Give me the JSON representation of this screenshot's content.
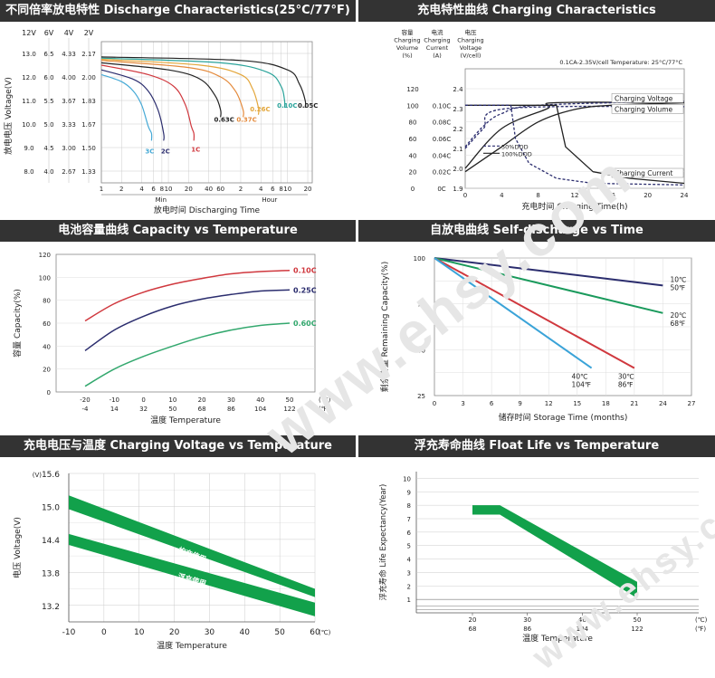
{
  "watermark": "www.ehsy.com",
  "colors": {
    "header_bg": "#333333",
    "green": "#12a14b",
    "red": "#d0383e",
    "navy": "#2b2d6e",
    "mint": "#33a86e"
  },
  "panels": {
    "discharge": {
      "title": "不同倍率放电特性 Discharge Characteristics(25°C/77°F)",
      "voltage_headers": [
        "12V",
        "6V",
        "4V",
        "2V"
      ],
      "voltage_rows": [
        [
          "13.0",
          "6.5",
          "4.33",
          "2.17"
        ],
        [
          "12.0",
          "6.0",
          "4.00",
          "2.00"
        ],
        [
          "11.0",
          "5.5",
          "3.67",
          "1.83"
        ],
        [
          "10.0",
          "5.0",
          "3.33",
          "1.67"
        ],
        [
          "9.0",
          "4.5",
          "3.00",
          "1.50"
        ],
        [
          "8.0",
          "4.0",
          "2.67",
          "1.33"
        ]
      ],
      "ylabel": "放电电压 Voltage(V)",
      "x_ticks": [
        "1",
        "2",
        "4",
        "6",
        "8",
        "10",
        "20",
        "40",
        "60",
        "2",
        "4",
        "6",
        "8",
        "10",
        "20"
      ],
      "min_label": "Min",
      "hour_label": "Hour",
      "xlabel": "放电时间 Discharging Time"
    },
    "charging": {
      "title": "充电特性曲线 Charging Characteristics",
      "col_headers": [
        [
          "容量",
          "Charging",
          "Volume",
          "(%)"
        ],
        [
          "电流",
          "Charging",
          "Current",
          "(A)"
        ],
        [
          "电压",
          "Charging",
          "Voltage",
          "(V/cell)"
        ]
      ],
      "condition": "0.1CA-2.35V/cell  Temperature: 25°C/77°C",
      "volume_ticks": [
        "120",
        "100",
        "80",
        "60",
        "40",
        "20",
        "0"
      ],
      "current_ticks": [
        "0.10C",
        "0.08C",
        "0.06C",
        "0.04C",
        "0.02C",
        "0C"
      ],
      "voltage_ticks": [
        "2.4",
        "2.3",
        "2.2",
        "2.1",
        "2.0",
        "1.9"
      ],
      "x_ticks": [
        "0",
        "4",
        "8",
        "12",
        "16",
        "20",
        "24"
      ],
      "xlabel": "充电时间 Charging Time(h)",
      "legend": [
        "50%DOD",
        "100%DOD"
      ],
      "curve_labels": [
        "Charging Voltage",
        "Charging Volume",
        "Charging Current"
      ]
    },
    "capacity": {
      "title": "电池容量曲线 Capacity vs Temperature",
      "ylabel": "容量 Capacity(%)",
      "xlabel": "温度 Temperature",
      "y_ticks": [
        "120",
        "100",
        "80",
        "60",
        "40",
        "20",
        "0"
      ],
      "x_ticks_c": [
        "-20",
        "-10",
        "0",
        "10",
        "20",
        "30",
        "40",
        "50"
      ],
      "x_ticks_f": [
        "-4",
        "14",
        "32",
        "50",
        "68",
        "86",
        "104",
        "122"
      ],
      "unit_c": "(℃)",
      "unit_f": "(℉)"
    },
    "selfdischarge": {
      "title": "自放电曲线 Self-discharge vs Time",
      "ylabel": "剩余容量 Remaining Capacity(%)",
      "xlabel": "储存时间 Storage Time (months)",
      "y_ticks": [
        "100",
        "75",
        "50",
        "25"
      ],
      "x_ticks": [
        "0",
        "3",
        "6",
        "9",
        "12",
        "15",
        "18",
        "21",
        "24",
        "27"
      ]
    },
    "chargevolt": {
      "title": "充电电压与温度 Charging Voltage vs Temperature",
      "ylabel": "电压 Voltage(V)",
      "yunit": "(V)",
      "xlabel": "温度 Temperature",
      "y_ticks": [
        "15.6",
        "15.0",
        "14.4",
        "13.8",
        "13.2"
      ],
      "x_ticks": [
        "-10",
        "0",
        "10",
        "20",
        "30",
        "40",
        "50",
        "60"
      ],
      "xunit": "(℃)"
    },
    "floatlife": {
      "title": "浮充寿命曲线 Float Life vs Temperature",
      "ylabel": "浮充寿命 Life Expectancy(Year)",
      "xlabel": "温度 Temperature",
      "y_ticks": [
        "10",
        "9",
        "8",
        "7",
        "6",
        "5",
        "4",
        "3",
        "2",
        "1"
      ],
      "x_ticks_c": [
        "20",
        "30",
        "40",
        "50"
      ],
      "x_ticks_f": [
        "68",
        "86",
        "104",
        "122"
      ],
      "unit_c": "(℃)",
      "unit_f": "(℉)"
    }
  },
  "chart_data": [
    {
      "type": "line",
      "title": "不同倍率放电特性 Discharge Characteristics(25°C/77°F)",
      "xlabel": "放电时间 Discharging Time",
      "ylabel": "放电电压 Voltage(V)",
      "x_scale": "log",
      "x_unit": "minutes",
      "ylim": [
        7.5,
        13.5
      ],
      "series": [
        {
          "name": "3C",
          "color": "#45a9d6",
          "points": [
            [
              1,
              12.1
            ],
            [
              2,
              11.8
            ],
            [
              3,
              11.4
            ],
            [
              4,
              10.8
            ],
            [
              5,
              9.9
            ],
            [
              5.6,
              9.6
            ]
          ]
        },
        {
          "name": "2C",
          "color": "#2b2d6e",
          "points": [
            [
              1,
              12.3
            ],
            [
              3,
              11.9
            ],
            [
              5,
              11.4
            ],
            [
              7,
              10.6
            ],
            [
              8.5,
              9.6
            ]
          ]
        },
        {
          "name": "1C",
          "color": "#d0383e",
          "points": [
            [
              1,
              12.5
            ],
            [
              5,
              12.1
            ],
            [
              12,
              11.6
            ],
            [
              18,
              10.8
            ],
            [
              22,
              9.9
            ],
            [
              24,
              9.6
            ]
          ]
        },
        {
          "name": "0.63C",
          "color": "#222222",
          "points": [
            [
              1,
              12.6
            ],
            [
              10,
              12.3
            ],
            [
              30,
              11.9
            ],
            [
              50,
              11.2
            ],
            [
              60,
              10.6
            ]
          ]
        },
        {
          "name": "0.37C",
          "color": "#e48a3c",
          "points": [
            [
              1,
              12.7
            ],
            [
              20,
              12.4
            ],
            [
              60,
              12.0
            ],
            [
              100,
              11.4
            ],
            [
              130,
              10.6
            ]
          ]
        },
        {
          "name": "0.26C",
          "color": "#e3a63a",
          "points": [
            [
              1,
              12.75
            ],
            [
              30,
              12.5
            ],
            [
              120,
              12.1
            ],
            [
              180,
              11.5
            ],
            [
              220,
              10.7
            ]
          ]
        },
        {
          "name": "0.10C",
          "color": "#2aa39a",
          "points": [
            [
              1,
              12.8
            ],
            [
              60,
              12.6
            ],
            [
              300,
              12.2
            ],
            [
              480,
              11.6
            ],
            [
              540,
              11.0
            ]
          ]
        },
        {
          "name": "0.05C",
          "color": "#222222",
          "points": [
            [
              1,
              12.85
            ],
            [
              120,
              12.7
            ],
            [
              600,
              12.3
            ],
            [
              900,
              11.7
            ],
            [
              1100,
              11.0
            ]
          ]
        }
      ]
    },
    {
      "type": "line",
      "title": "充电特性曲线 Charging Characteristics",
      "xlabel": "充电时间 Charging Time(h)",
      "xlim": [
        0,
        24
      ],
      "series": [
        {
          "name": "Charging Voltage (100%DOD)",
          "axis": "voltage",
          "points": [
            [
              0,
              2.0
            ],
            [
              4,
              2.2
            ],
            [
              9,
              2.3
            ],
            [
              10,
              2.33
            ],
            [
              24,
              2.33
            ]
          ]
        },
        {
          "name": "Charging Voltage (50%DOD)",
          "axis": "voltage",
          "points": [
            [
              0,
              2.1
            ],
            [
              2,
              2.2
            ],
            [
              4.5,
              2.3
            ],
            [
              24,
              2.31
            ]
          ]
        },
        {
          "name": "Charging Volume (100%DOD)",
          "axis": "volume",
          "points": [
            [
              0,
              20
            ],
            [
              4,
              50
            ],
            [
              8,
              80
            ],
            [
              12,
              95
            ],
            [
              16,
              100
            ],
            [
              24,
              103
            ]
          ]
        },
        {
          "name": "Charging Volume (50%DOD)",
          "axis": "volume",
          "points": [
            [
              0,
              50
            ],
            [
              2,
              75
            ],
            [
              4,
              90
            ],
            [
              8,
              100
            ],
            [
              24,
              105
            ]
          ]
        },
        {
          "name": "Charging Current (100%DOD)",
          "axis": "current",
          "points": [
            [
              0,
              0.1
            ],
            [
              10,
              0.1
            ],
            [
              11,
              0.05
            ],
            [
              14,
              0.02
            ],
            [
              18,
              0.012
            ],
            [
              24,
              0.006
            ]
          ]
        },
        {
          "name": "Charging Current (50%DOD)",
          "axis": "current",
          "points": [
            [
              0,
              0.1
            ],
            [
              5,
              0.1
            ],
            [
              5.5,
              0.06
            ],
            [
              7,
              0.03
            ],
            [
              10,
              0.012
            ],
            [
              14,
              0.006
            ],
            [
              24,
              0.004
            ]
          ]
        }
      ],
      "volume_range": [
        0,
        120
      ],
      "current_range": [
        0,
        0.12
      ],
      "voltage_range": [
        1.9,
        2.4
      ]
    },
    {
      "type": "line",
      "title": "电池容量曲线 Capacity vs Temperature",
      "xlabel": "温度 Temperature",
      "ylabel": "容量 Capacity(%)",
      "xlim": [
        -20,
        50
      ],
      "ylim": [
        0,
        120
      ],
      "series": [
        {
          "name": "0.10C",
          "color": "#d0383e",
          "x": [
            -20,
            -10,
            0,
            10,
            20,
            30,
            40,
            50
          ],
          "values": [
            62,
            77,
            87,
            94,
            99,
            103,
            105,
            106
          ]
        },
        {
          "name": "0.25C",
          "color": "#2b2d6e",
          "x": [
            -20,
            -10,
            0,
            10,
            20,
            30,
            40,
            50
          ],
          "values": [
            36,
            54,
            66,
            75,
            81,
            85,
            88,
            89
          ]
        },
        {
          "name": "0.60C",
          "color": "#33a86e",
          "x": [
            -20,
            -10,
            0,
            10,
            20,
            30,
            40,
            50
          ],
          "values": [
            5,
            20,
            31,
            40,
            48,
            54,
            58,
            60
          ]
        }
      ]
    },
    {
      "type": "line",
      "title": "自放电曲线 Self-discharge vs Time",
      "xlabel": "储存时间 Storage Time (months)",
      "ylabel": "剩余容量 Remaining Capacity(%)",
      "xlim": [
        0,
        27
      ],
      "ylim": [
        25,
        100
      ],
      "series": [
        {
          "name": "10℃ 50℉",
          "color": "#2b2d6e",
          "x": [
            0,
            24
          ],
          "values": [
            100,
            85
          ]
        },
        {
          "name": "20℃ 68℉",
          "color": "#1a9a5c",
          "x": [
            0,
            24
          ],
          "values": [
            100,
            70
          ]
        },
        {
          "name": "30℃ 86℉",
          "color": "#d0383e",
          "x": [
            0,
            21
          ],
          "values": [
            100,
            40
          ]
        },
        {
          "name": "40℃ 104℉",
          "color": "#3aa3d8",
          "x": [
            0,
            16.5
          ],
          "values": [
            100,
            40
          ]
        }
      ]
    },
    {
      "type": "area",
      "title": "充电电压与温度 Charging Voltage vs Temperature",
      "xlabel": "温度 Temperature",
      "ylabel": "电压 Voltage(V)",
      "xlim": [
        -10,
        60
      ],
      "ylim": [
        12.9,
        15.6
      ],
      "series": [
        {
          "name": "均充使用",
          "x": [
            -10,
            60
          ],
          "upper": [
            15.2,
            13.5
          ],
          "lower": [
            14.95,
            13.35
          ]
        },
        {
          "name": "浮充使用",
          "x": [
            -10,
            60
          ],
          "upper": [
            14.5,
            13.25
          ],
          "lower": [
            14.3,
            13.0
          ]
        }
      ]
    },
    {
      "type": "area",
      "title": "浮充寿命曲线 Float Life vs Temperature",
      "xlabel": "温度 Temperature",
      "ylabel": "浮充寿命 Life Expectancy(Year)",
      "xlim": [
        17,
        58
      ],
      "ylim": [
        0,
        10.5
      ],
      "series": [
        {
          "name": "",
          "x": [
            20,
            25,
            50
          ],
          "upper": [
            8.0,
            8.0,
            2.3
          ],
          "lower": [
            7.3,
            7.3,
            1.1
          ]
        }
      ]
    }
  ]
}
